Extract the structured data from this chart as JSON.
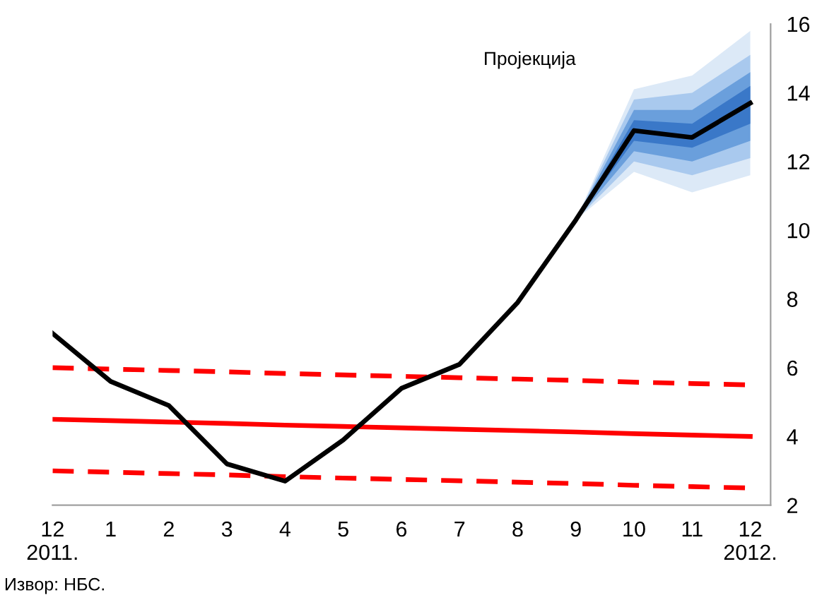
{
  "chart_data": {
    "type": "line",
    "categories": [
      "12\n2011.",
      "1",
      "2",
      "3",
      "4",
      "5",
      "6",
      "7",
      "8",
      "9",
      "10",
      "11",
      "12\n2012."
    ],
    "series": [
      {
        "color": "#dce9f7",
        "values": [
          null,
          null,
          null,
          null,
          null,
          null,
          null,
          null,
          null,
          null,
          null,
          null,
          null
        ],
        "lower": [
          null,
          null,
          null,
          null,
          null,
          null,
          null,
          null,
          null,
          10.3,
          11.7,
          11.1,
          11.6
        ],
        "upper": [
          null,
          null,
          null,
          null,
          null,
          null,
          null,
          null,
          null,
          10.3,
          14.1,
          14.5,
          15.8
        ]
      },
      {
        "color": "#a9c9ee",
        "values": [
          null,
          null,
          null,
          null,
          null,
          null,
          null,
          null,
          null,
          null,
          null,
          null,
          null
        ],
        "lower": [
          null,
          null,
          null,
          null,
          null,
          null,
          null,
          null,
          null,
          10.3,
          12.0,
          11.6,
          12.1
        ],
        "upper": [
          null,
          null,
          null,
          null,
          null,
          null,
          null,
          null,
          null,
          10.3,
          13.8,
          14.0,
          15.1
        ]
      },
      {
        "color": "#6a9fdc",
        "values": [
          null,
          null,
          null,
          null,
          null,
          null,
          null,
          null,
          null,
          null,
          null,
          null,
          null
        ],
        "lower": [
          null,
          null,
          null,
          null,
          null,
          null,
          null,
          null,
          null,
          10.3,
          12.3,
          12.0,
          12.6
        ],
        "upper": [
          null,
          null,
          null,
          null,
          null,
          null,
          null,
          null,
          null,
          10.3,
          13.5,
          13.5,
          14.6
        ]
      },
      {
        "color": "#3a78c8",
        "values": [
          null,
          null,
          null,
          null,
          null,
          null,
          null,
          null,
          null,
          null,
          null,
          null,
          null
        ],
        "lower": [
          null,
          null,
          null,
          null,
          null,
          null,
          null,
          null,
          null,
          10.3,
          12.6,
          12.4,
          13.1
        ],
        "upper": [
          null,
          null,
          null,
          null,
          null,
          null,
          null,
          null,
          null,
          10.3,
          13.2,
          13.1,
          14.2
        ]
      },
      {
        "color": "#ff0000",
        "line_style": "dashed",
        "values": [
          6.0,
          5.96,
          5.92,
          5.88,
          5.83,
          5.79,
          5.75,
          5.71,
          5.67,
          5.63,
          5.58,
          5.54,
          5.5
        ]
      },
      {
        "color": "#ff0000",
        "line_style": "solid",
        "values": [
          4.5,
          4.46,
          4.42,
          4.38,
          4.33,
          4.29,
          4.25,
          4.21,
          4.17,
          4.13,
          4.08,
          4.04,
          4.0
        ]
      },
      {
        "color": "#ff0000",
        "line_style": "dashed",
        "values": [
          3.0,
          2.96,
          2.92,
          2.88,
          2.83,
          2.79,
          2.75,
          2.71,
          2.67,
          2.63,
          2.58,
          2.54,
          2.5
        ]
      },
      {
        "color": "#000000",
        "line_style": "solid",
        "values": [
          7.0,
          5.6,
          4.9,
          3.2,
          2.7,
          3.9,
          5.4,
          6.1,
          7.9,
          10.3,
          12.9,
          12.7,
          13.7
        ]
      }
    ],
    "ylim": [
      2,
      16
    ],
    "yticks": [
      2,
      4,
      6,
      8,
      10,
      12,
      14,
      16
    ],
    "grid": false,
    "legend": false,
    "marker": "none",
    "annotations": [
      "Пројекција",
      "Извор: НБС."
    ]
  }
}
